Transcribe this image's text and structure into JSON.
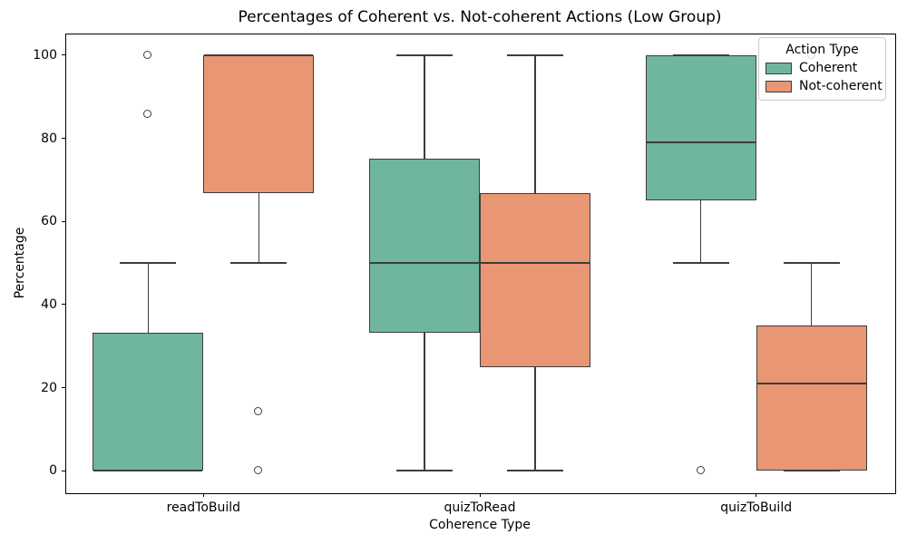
{
  "chart_data": {
    "type": "boxplot",
    "title": "Percentages of Coherent vs. Not-coherent Actions (Low Group)",
    "xlabel": "Coherence Type",
    "ylabel": "Percentage",
    "categories": [
      "readToBuild",
      "quizToRead",
      "quizToBuild"
    ],
    "yticks": [
      0,
      20,
      40,
      60,
      80,
      100
    ],
    "ylim": [
      -5.2,
      105.2
    ],
    "grid": false,
    "legend": {
      "title": "Action Type",
      "position": "upper-right"
    },
    "colors": {
      "coherent": "#70b5a0",
      "not_coherent": "#e99674",
      "box_edge": "#3d3d3d",
      "flier_fill": "#ffffff"
    },
    "series": [
      {
        "name": "Coherent",
        "color": "#70b5a0",
        "boxes": [
          {
            "category": "readToBuild",
            "whislo": 0,
            "q1": 0,
            "med": 0,
            "q3": 33.3,
            "whishi": 50,
            "outliers": [
              85.7,
              100
            ]
          },
          {
            "category": "quizToRead",
            "whislo": 0,
            "q1": 33.3,
            "med": 50,
            "q3": 75,
            "whishi": 100,
            "outliers": []
          },
          {
            "category": "quizToBuild",
            "whislo": 50,
            "q1": 65,
            "med": 79,
            "q3": 100,
            "whishi": 100,
            "outliers": [
              0
            ]
          }
        ]
      },
      {
        "name": "Not-coherent",
        "color": "#e99674",
        "boxes": [
          {
            "category": "readToBuild",
            "whislo": 50,
            "q1": 66.7,
            "med": 100,
            "q3": 100,
            "whishi": 100,
            "outliers": [
              14.3,
              0
            ]
          },
          {
            "category": "quizToRead",
            "whislo": 0,
            "q1": 25,
            "med": 50,
            "q3": 66.7,
            "whishi": 100,
            "outliers": []
          },
          {
            "category": "quizToBuild",
            "whislo": 0,
            "q1": 0,
            "med": 21,
            "q3": 35,
            "whishi": 50,
            "outliers": [
              100
            ]
          }
        ]
      }
    ]
  }
}
